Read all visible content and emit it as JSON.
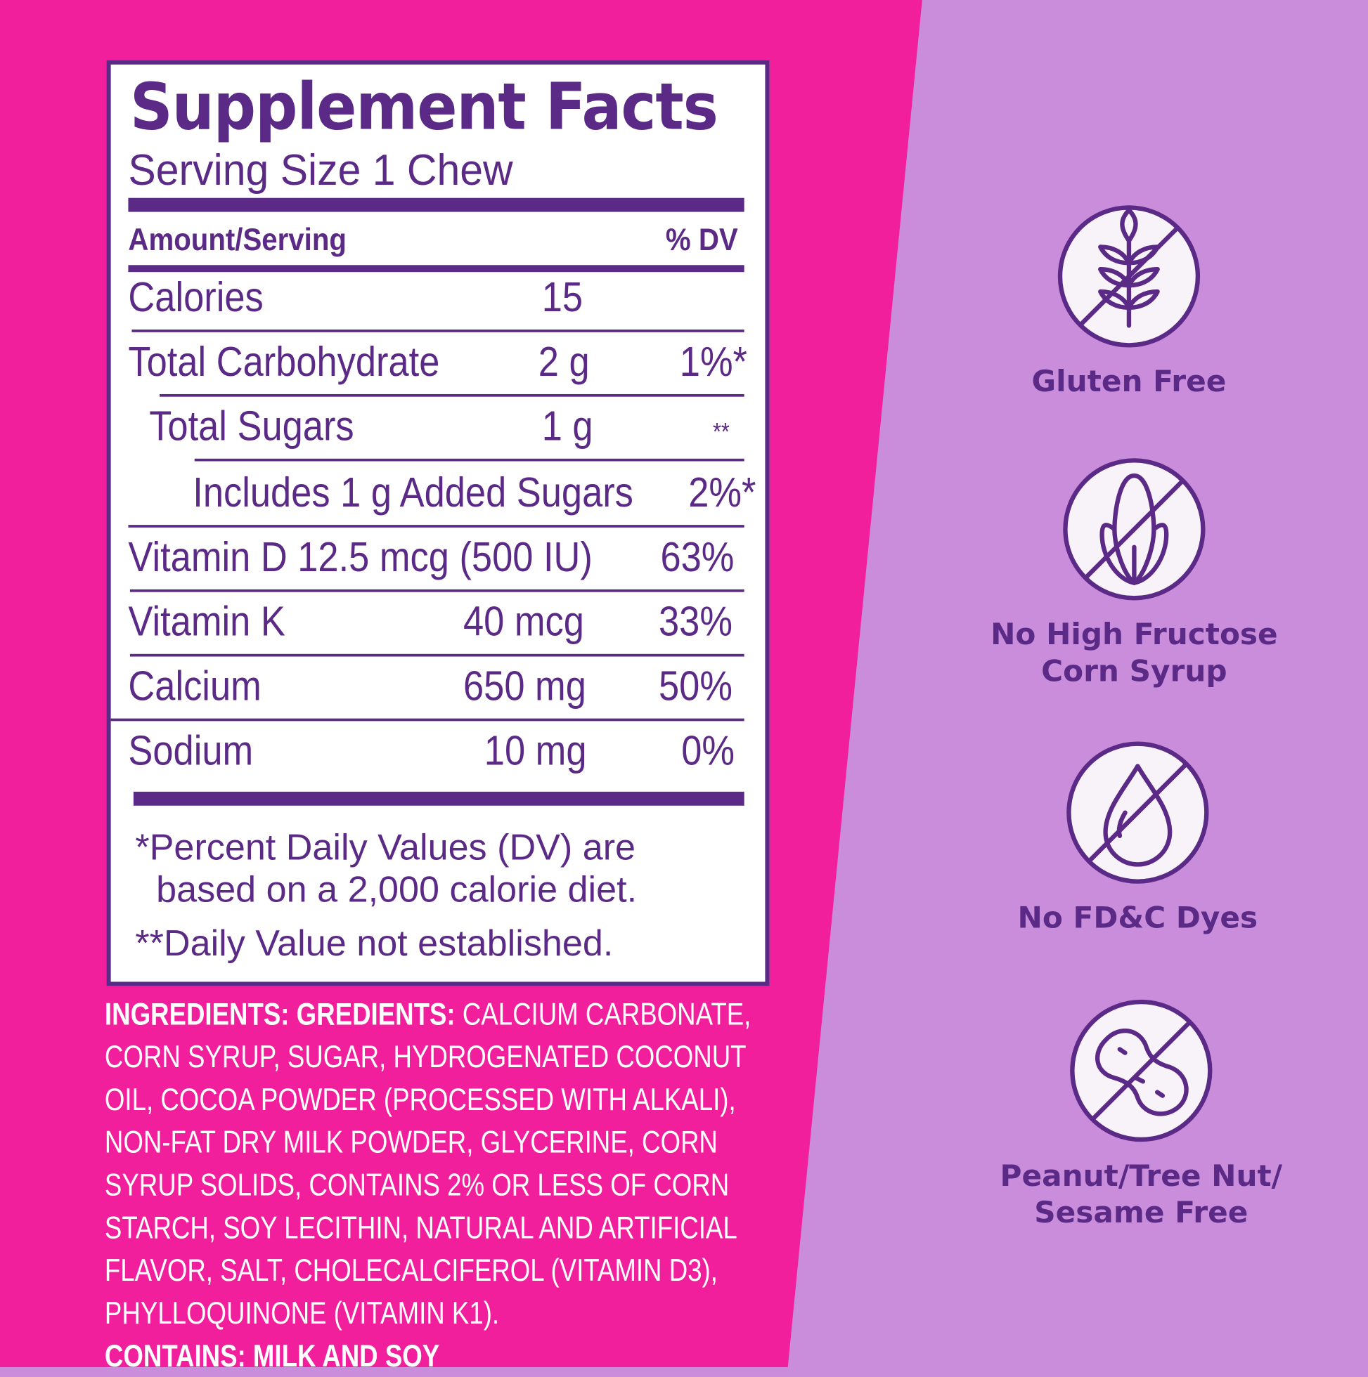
{
  "colors": {
    "pink": "#F21F9C",
    "lavender": "#C98DDC",
    "purple": "#5B2A86",
    "white": "#FFFFFF"
  },
  "facts": {
    "title": "Supplement Facts",
    "serving": "Serving Size 1 Chew",
    "header_left": "Amount/Serving",
    "header_right": "% DV",
    "rows": [
      {
        "name": "Calories",
        "amount": "15",
        "dv": ""
      },
      {
        "name": "Total Carbohydrate",
        "amount": "2 g",
        "dv": "1%*"
      },
      {
        "name": "Total Sugars",
        "amount": "1 g",
        "dv": "**"
      },
      {
        "name": "Includes 1 g Added Sugars",
        "amount": "",
        "dv": "2%*"
      },
      {
        "name": "Vitamin D 12.5 mcg (500 IU)",
        "amount": "",
        "dv": "63%"
      },
      {
        "name": "Vitamin K",
        "amount": "40 mcg",
        "dv": "33%"
      },
      {
        "name": "Calcium",
        "amount": "650 mg",
        "dv": "50%"
      },
      {
        "name": "Sodium",
        "amount": "10 mg",
        "dv": "0%"
      }
    ],
    "footnote1a": "*Percent Daily Values (DV) are",
    "footnote1b": "based on a 2,000 calorie diet.",
    "footnote2": "**Daily Value not established."
  },
  "ingredients": {
    "label": "INGREDIENTS: GREDIENTS:",
    "text": "CALCIUM CARBONATE, CORN SYRUP, SUGAR, HYDROGENATED COCONUT OIL, COCOA POWDER (PROCESSED WITH ALKALI), NON-FAT DRY MILK POWDER, GLYCERINE, CORN SYRUP SOLIDS, CONTAINS 2% OR LESS OF CORN STARCH, SOY LECITHIN, NATURAL AND ARTIFICIAL FLAVOR, SALT, CHOLECALCIFEROL (VITAMIN D3), PHYLLOQUINONE (VITAMIN K1).",
    "contains": "CONTAINS: MILK AND SOY"
  },
  "badges": [
    {
      "icon": "wheat-crossed-icon",
      "line1": "Gluten Free",
      "line2": ""
    },
    {
      "icon": "corn-crossed-icon",
      "line1": "No High Fructose",
      "line2": "Corn Syrup"
    },
    {
      "icon": "drop-crossed-icon",
      "line1": "No FD&C Dyes",
      "line2": ""
    },
    {
      "icon": "peanut-crossed-icon",
      "line1": "Peanut/Tree Nut/",
      "line2": "Sesame Free"
    }
  ]
}
